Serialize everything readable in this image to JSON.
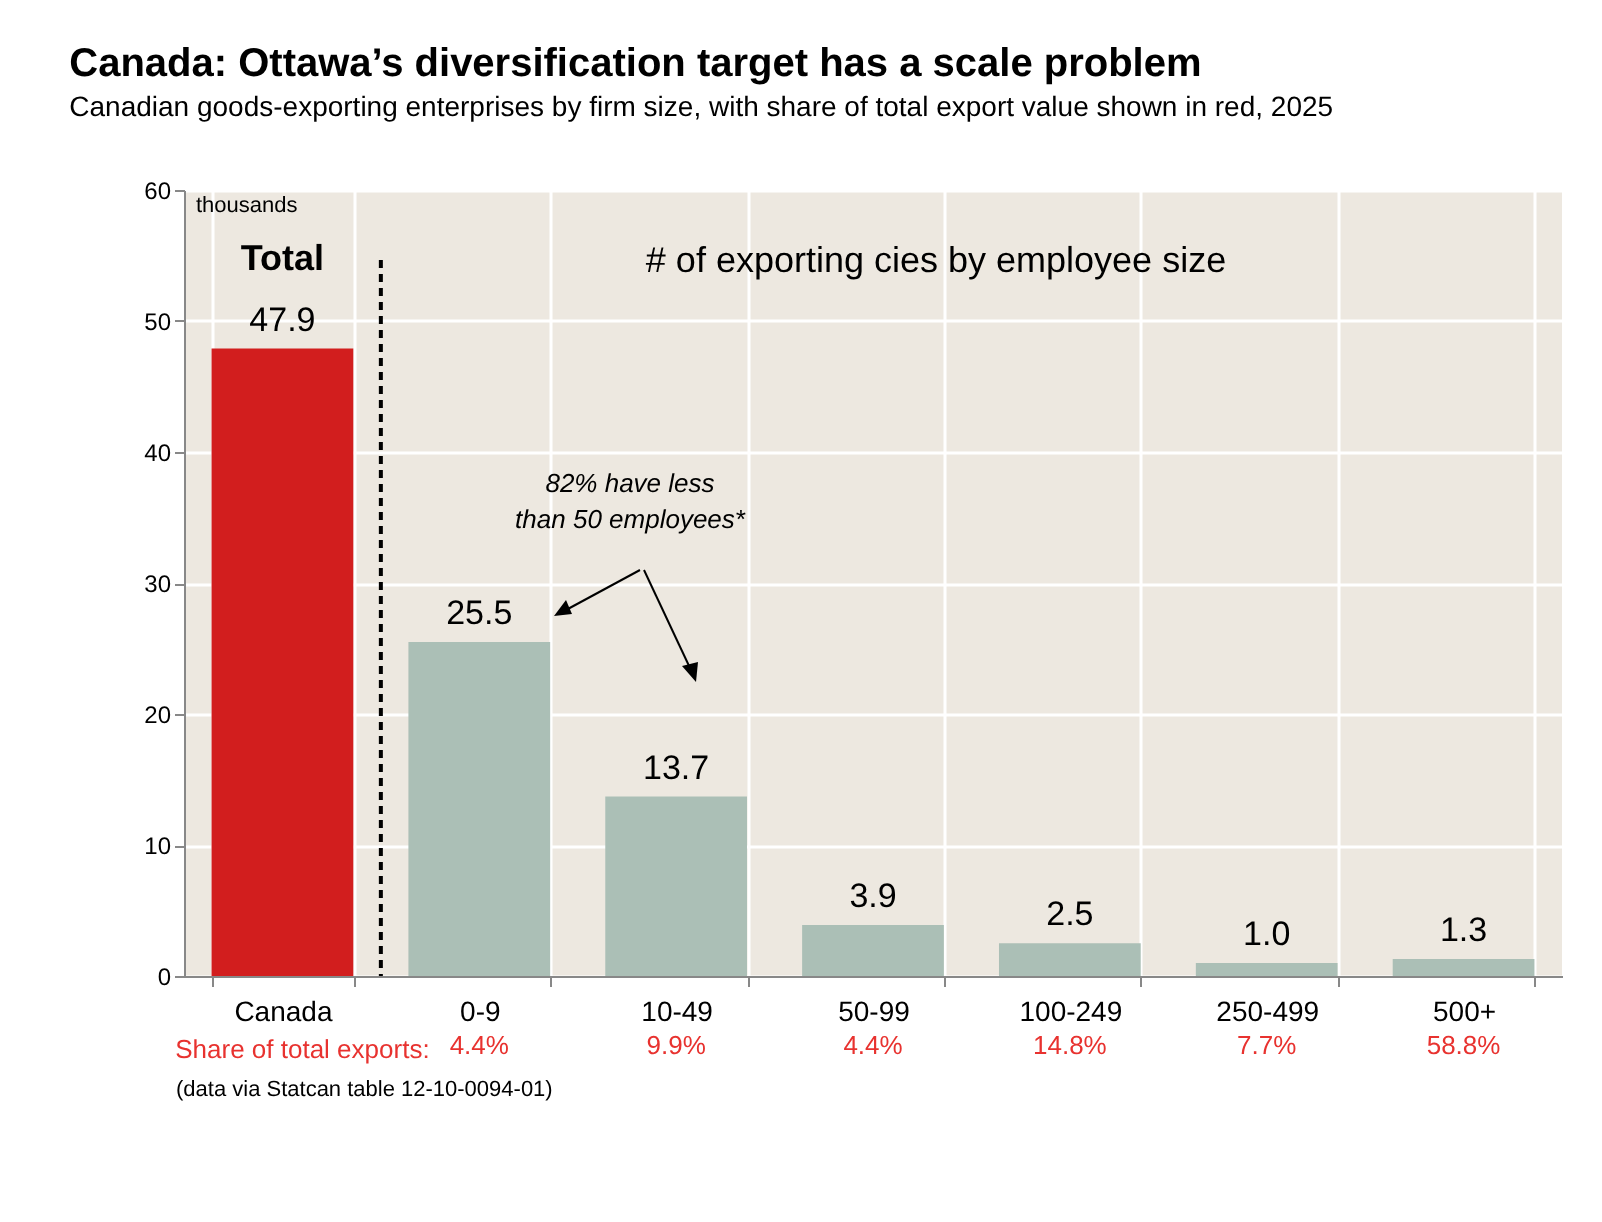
{
  "chart_data": {
    "type": "bar",
    "title": "Canada: Ottawa’s diversification target has a scale problem",
    "subtitle": "Canadian goods-exporting enterprises by firm size, with share of total export value shown in red, 2025",
    "ylabel": "thousands",
    "categories": [
      "Canada",
      "0-9",
      "10-49",
      "50-99",
      "100-249",
      "250-499",
      "500+"
    ],
    "values": [
      47.9,
      25.5,
      13.7,
      3.9,
      2.5,
      1.0,
      1.3
    ],
    "colors": [
      "#d21e1e",
      "#abbfb6",
      "#abbfb6",
      "#abbfb6",
      "#abbfb6",
      "#abbfb6",
      "#abbfb6"
    ],
    "ylim": [
      0,
      60
    ],
    "yticks": [
      0,
      10,
      20,
      30,
      40,
      50,
      60
    ],
    "grid": true,
    "value_labels": [
      "47.9",
      "25.5",
      "13.7",
      "3.9",
      "2.5",
      "1.0",
      "1.3"
    ],
    "ref_lines": [
      {
        "axis": "x",
        "value": "Canada",
        "color": "#000000",
        "line_style": "dashed"
      }
    ],
    "annotations": [
      "Total",
      "# of exporting cies by employee size",
      "82% have less than 50 employees*",
      "Share of total exports:",
      "4.4%",
      "9.9%",
      "4.4%",
      "14.8%",
      "7.7%",
      "58.8%",
      "(data via Statcan table 12-10-0094-01)"
    ]
  }
}
